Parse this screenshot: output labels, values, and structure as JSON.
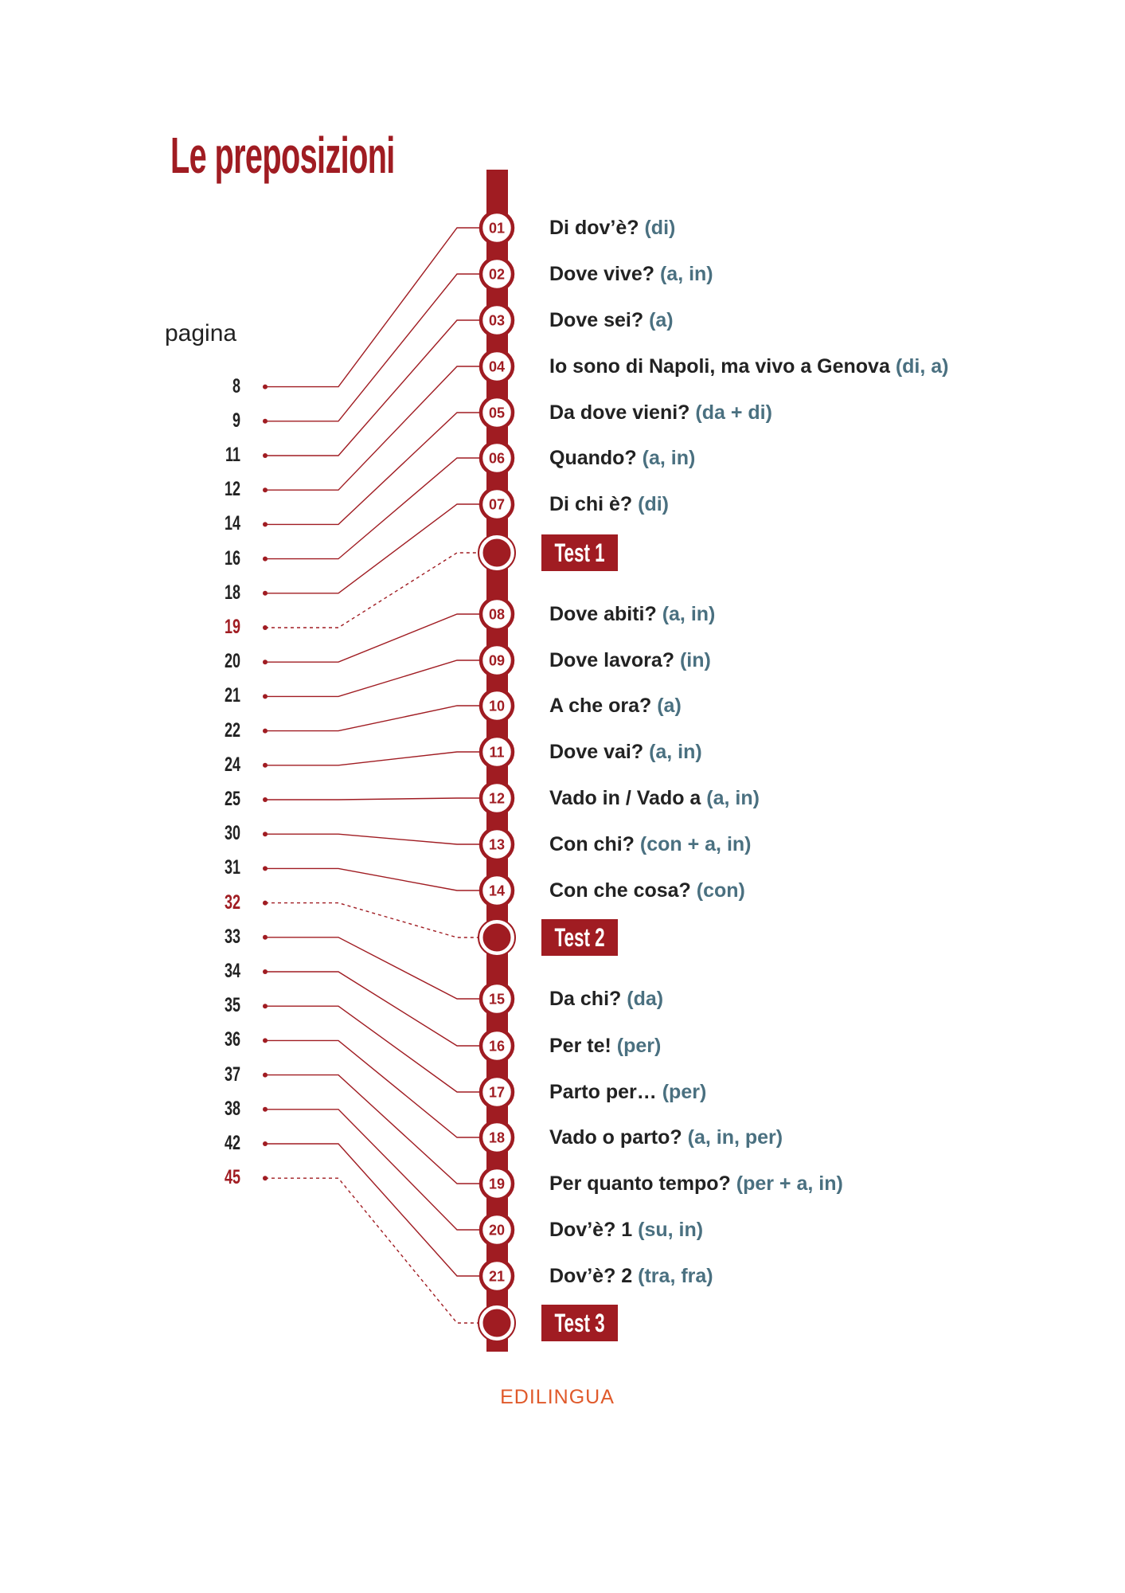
{
  "title": "Le preposizioni",
  "pagina_label": "pagina",
  "colors": {
    "accent": "#a01c22",
    "prep": "#4a7080",
    "text": "#222222",
    "logo": "#e05a2b"
  },
  "entries": [
    {
      "page": "8",
      "num": "01",
      "label": "Di dov’è?",
      "preps": "(di)"
    },
    {
      "page": "9",
      "num": "02",
      "label": "Dove vive?",
      "preps": "(a, in)"
    },
    {
      "page": "11",
      "num": "03",
      "label": "Dove sei?",
      "preps": "(a)"
    },
    {
      "page": "12",
      "num": "04",
      "label": "Io sono di Napoli, ma vivo a Genova",
      "preps": "(di, a)"
    },
    {
      "page": "14",
      "num": "05",
      "label": "Da dove vieni?",
      "preps": "(da + di)"
    },
    {
      "page": "16",
      "num": "06",
      "label": "Quando?",
      "preps": "(a, in)"
    },
    {
      "page": "18",
      "num": "07",
      "label": "Di chi è?",
      "preps": "(di)"
    },
    {
      "page": "19",
      "test": "Test 1"
    },
    {
      "page": "20",
      "num": "08",
      "label": "Dove abiti?",
      "preps": "(a, in)"
    },
    {
      "page": "21",
      "num": "09",
      "label": "Dove lavora?",
      "preps": "(in)"
    },
    {
      "page": "22",
      "num": "10",
      "label": "A che ora?",
      "preps": "(a)"
    },
    {
      "page": "24",
      "num": "11",
      "label": "Dove vai?",
      "preps": "(a, in)"
    },
    {
      "page": "25",
      "num": "12",
      "label": "Vado in / Vado a",
      "preps": "(a, in)"
    },
    {
      "page": "30",
      "num": "13",
      "label": "Con chi?",
      "preps": "(con + a, in)"
    },
    {
      "page": "31",
      "num": "14",
      "label": "Con che cosa?",
      "preps": "(con)"
    },
    {
      "page": "32",
      "test": "Test 2"
    },
    {
      "page": "33",
      "num": "15",
      "label": "Da chi?",
      "preps": "(da)"
    },
    {
      "page": "34",
      "num": "16",
      "label": "Per te!",
      "preps": "(per)"
    },
    {
      "page": "35",
      "num": "17",
      "label": "Parto per…",
      "preps": "(per)"
    },
    {
      "page": "36",
      "num": "18",
      "label": "Vado o parto?",
      "preps": "(a, in, per)"
    },
    {
      "page": "37",
      "num": "19",
      "label": "Per quanto tempo?",
      "preps": "(per + a, in)"
    },
    {
      "page": "38",
      "num": "20",
      "label": "Dov’è? 1",
      "preps": "(su, in)"
    },
    {
      "page": "42",
      "num": "21",
      "label": "Dov’è? 2",
      "preps": "(tra, fra)"
    },
    {
      "page": "45",
      "test": "Test 3"
    }
  ],
  "logo": "EDILINGUA"
}
